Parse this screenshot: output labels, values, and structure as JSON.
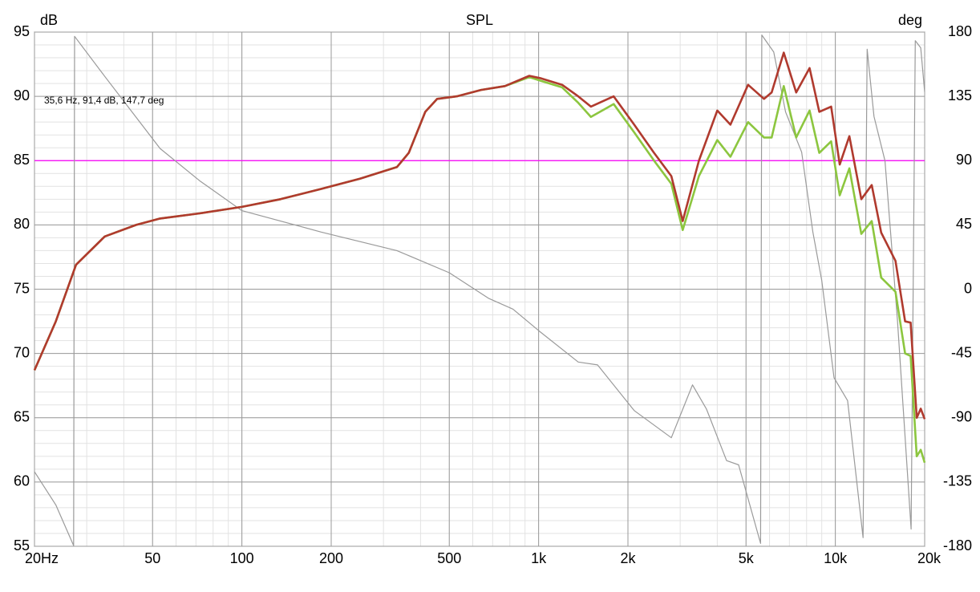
{
  "chart_data": {
    "type": "line",
    "title": "SPL",
    "y_label": "dB",
    "y2_label": "deg",
    "annotation": "35,6 Hz, 91,4 dB, 147,7 deg",
    "xscale": "log",
    "grid": true,
    "xlim": [
      20,
      20000
    ],
    "ylim": [
      55,
      95
    ],
    "y2lim": [
      -180,
      180
    ],
    "xticks": [
      {
        "value": 20,
        "label": "20Hz"
      },
      50,
      100,
      200,
      500,
      {
        "value": 1000,
        "label": "1k"
      },
      {
        "value": 2000,
        "label": "2k"
      },
      {
        "value": 5000,
        "label": "5k"
      },
      {
        "value": 10000,
        "label": "10k"
      },
      {
        "value": 20000,
        "label": "20k"
      }
    ],
    "yticks": [
      55,
      60,
      65,
      70,
      75,
      80,
      85,
      90,
      95
    ],
    "y2ticks": [
      -180,
      -135,
      -90,
      -45,
      0,
      45,
      90,
      135,
      180
    ],
    "hlines": [
      {
        "value": 85,
        "color": "#ff00ff"
      }
    ],
    "series": [
      {
        "axis": "y2",
        "color": "#9a9a9a",
        "x": [
          20,
          23.6,
          27.1,
          27.3,
          34.5,
          53,
          72,
          100,
          185,
          333,
          500,
          680,
          820,
          1000,
          1360,
          1580,
          2100,
          2800,
          3300,
          3680,
          4300,
          4720,
          5600,
          5650,
          6200,
          6800,
          7700,
          8400,
          9000,
          9900,
          11000,
          12400,
          12800,
          13500,
          14700,
          16200,
          18000,
          18600,
          19400,
          20000
        ],
        "values": [
          -127.8,
          -151,
          -179.5,
          177,
          149,
          98.5,
          76,
          55,
          40,
          27,
          11.5,
          -6.5,
          -14,
          -29,
          -51,
          -53,
          -85,
          -104,
          -67,
          -84,
          -120,
          -123,
          -178,
          178,
          166,
          124,
          96,
          40,
          6,
          -62,
          -78,
          -174,
          168,
          121,
          90,
          -22,
          -168,
          174,
          169,
          138
        ]
      },
      {
        "color": "#8cc63f",
        "x": [
          20,
          23.6,
          27.6,
          34.5,
          44,
          53,
          72,
          100,
          135,
          185,
          250,
          333,
          365,
          415,
          455,
          530,
          640,
          770,
          930,
          1020,
          1200,
          1360,
          1500,
          1790,
          2100,
          2450,
          2800,
          3060,
          3470,
          4000,
          4430,
          5080,
          5750,
          6100,
          6700,
          7380,
          8190,
          8830,
          9680,
          10350,
          11150,
          12230,
          13260,
          14270,
          15950,
          17180,
          17940,
          18800,
          19400,
          20000
        ],
        "values": [
          68.7,
          72.5,
          76.9,
          79.1,
          80.0,
          80.5,
          80.9,
          81.4,
          82.0,
          82.8,
          83.6,
          84.5,
          85.6,
          88.8,
          89.8,
          90.0,
          90.5,
          90.8,
          91.5,
          91.2,
          90.7,
          89.5,
          88.4,
          89.4,
          87.2,
          85.0,
          83.2,
          79.6,
          83.8,
          86.6,
          85.3,
          88.0,
          86.8,
          86.8,
          90.8,
          86.8,
          88.9,
          85.6,
          86.5,
          82.3,
          84.4,
          79.3,
          80.3,
          75.9,
          74.8,
          70.0,
          69.8,
          62.0,
          62.5,
          61.5
        ]
      },
      {
        "color": "#b03a2e",
        "x": [
          20,
          23.6,
          27.6,
          34.5,
          44,
          53,
          72,
          100,
          135,
          185,
          250,
          333,
          365,
          415,
          455,
          530,
          640,
          770,
          930,
          1020,
          1200,
          1360,
          1500,
          1790,
          2100,
          2450,
          2800,
          3060,
          3470,
          4000,
          4430,
          5080,
          5750,
          6100,
          6700,
          7380,
          8190,
          8830,
          9680,
          10350,
          11150,
          12230,
          13260,
          14270,
          15950,
          17180,
          17940,
          18800,
          19400,
          20000
        ],
        "values": [
          68.7,
          72.5,
          76.9,
          79.1,
          80.0,
          80.5,
          80.9,
          81.4,
          82.0,
          82.8,
          83.6,
          84.5,
          85.6,
          88.8,
          89.8,
          90.0,
          90.5,
          90.8,
          91.6,
          91.4,
          90.9,
          90.0,
          89.2,
          90.0,
          87.8,
          85.6,
          83.8,
          80.3,
          85.0,
          88.9,
          87.8,
          90.9,
          89.8,
          90.3,
          93.4,
          90.3,
          92.2,
          88.8,
          89.2,
          84.7,
          86.9,
          82.0,
          83.1,
          79.4,
          77.2,
          72.5,
          72.4,
          65.0,
          65.7,
          64.9
        ]
      }
    ]
  }
}
